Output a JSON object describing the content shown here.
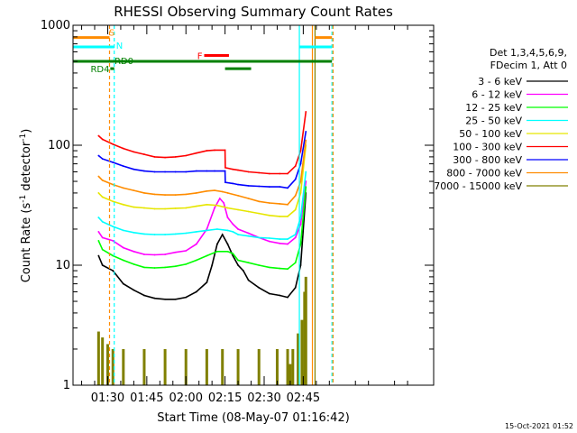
{
  "chart_data": {
    "type": "line",
    "title": "RHESSI Observing Summary Count Rates",
    "xlabel": "Start Time (08-May-07 01:16:42)",
    "ylabel_main": "Count Rate (s",
    "ylabel_sup1": "-1",
    "ylabel_mid": " detector",
    "ylabel_sup2": "-1",
    "ylabel_end": ")",
    "yscale": "log",
    "ylim": [
      1,
      1000
    ],
    "xlim_min": [
      76.7,
      215
    ],
    "y_ticks": [
      {
        "value": 1,
        "label": "1"
      },
      {
        "value": 10,
        "label": "10"
      },
      {
        "value": 100,
        "label": "100"
      },
      {
        "value": 1000,
        "label": "1000"
      }
    ],
    "x_ticks": [
      {
        "value": 90,
        "label": "01:30"
      },
      {
        "value": 105,
        "label": "01:45"
      },
      {
        "value": 120,
        "label": "02:00"
      },
      {
        "value": 135,
        "label": "02:15"
      },
      {
        "value": 150,
        "label": "02:30"
      },
      {
        "value": 165,
        "label": "02:45"
      }
    ],
    "legend": {
      "header_line1": "Det 1,3,4,5,6,9,",
      "header_line2": "FDecim 1, Att 0",
      "placement": "right"
    },
    "series": [
      {
        "name": "3 - 6 keV",
        "color": "#000000",
        "points": [
          [
            86.5,
            12
          ],
          [
            88,
            10
          ],
          [
            92,
            9
          ],
          [
            96,
            7
          ],
          [
            100,
            6.2
          ],
          [
            104,
            5.6
          ],
          [
            108,
            5.3
          ],
          [
            112,
            5.2
          ],
          [
            116,
            5.2
          ],
          [
            120,
            5.4
          ],
          [
            124,
            6
          ],
          [
            128,
            7.2
          ],
          [
            130,
            10
          ],
          [
            132,
            15
          ],
          [
            134,
            18
          ],
          [
            136,
            15
          ],
          [
            138,
            12
          ],
          [
            140,
            10
          ],
          [
            142,
            9
          ],
          [
            144,
            7.5
          ],
          [
            148,
            6.5
          ],
          [
            152,
            5.8
          ],
          [
            156,
            5.6
          ],
          [
            159,
            5.4
          ],
          [
            162,
            6.5
          ],
          [
            164,
            10
          ],
          [
            166,
            40
          ]
        ]
      },
      {
        "name": "6 - 12 keV",
        "color": "#ff00ff",
        "points": [
          [
            86.5,
            19
          ],
          [
            88,
            17
          ],
          [
            92,
            16
          ],
          [
            96,
            14
          ],
          [
            100,
            13
          ],
          [
            104,
            12.3
          ],
          [
            108,
            12.2
          ],
          [
            112,
            12.3
          ],
          [
            116,
            12.8
          ],
          [
            120,
            13.2
          ],
          [
            124,
            15
          ],
          [
            128,
            20
          ],
          [
            131,
            30
          ],
          [
            133,
            36
          ],
          [
            134.5,
            33
          ],
          [
            136,
            25
          ],
          [
            138,
            22
          ],
          [
            140,
            20
          ],
          [
            144,
            18.5
          ],
          [
            148,
            17
          ],
          [
            152,
            15.8
          ],
          [
            156,
            15.2
          ],
          [
            159,
            15
          ],
          [
            162,
            17
          ],
          [
            164,
            22
          ],
          [
            166,
            50
          ]
        ]
      },
      {
        "name": "12 - 25 keV",
        "color": "#00ff00",
        "points": [
          [
            86.5,
            16
          ],
          [
            88,
            13.5
          ],
          [
            92,
            12
          ],
          [
            96,
            11
          ],
          [
            100,
            10.2
          ],
          [
            104,
            9.6
          ],
          [
            108,
            9.5
          ],
          [
            112,
            9.6
          ],
          [
            116,
            9.8
          ],
          [
            120,
            10.2
          ],
          [
            124,
            11
          ],
          [
            128,
            12
          ],
          [
            132,
            13
          ],
          [
            136,
            13
          ],
          [
            138,
            12.5
          ],
          [
            140,
            11
          ],
          [
            144,
            10.5
          ],
          [
            148,
            10
          ],
          [
            152,
            9.6
          ],
          [
            156,
            9.4
          ],
          [
            159,
            9.3
          ],
          [
            162,
            10.5
          ],
          [
            164,
            15
          ],
          [
            166,
            45
          ]
        ]
      },
      {
        "name": "25 - 50 keV",
        "color": "#00ffff",
        "points": [
          [
            86.5,
            25
          ],
          [
            88,
            23
          ],
          [
            92,
            21
          ],
          [
            96,
            19.5
          ],
          [
            100,
            18.7
          ],
          [
            104,
            18.2
          ],
          [
            108,
            18
          ],
          [
            112,
            18
          ],
          [
            116,
            18.2
          ],
          [
            120,
            18.5
          ],
          [
            124,
            19
          ],
          [
            128,
            19.5
          ],
          [
            132,
            20
          ],
          [
            136,
            19.5
          ],
          [
            138,
            19
          ],
          [
            140,
            18
          ],
          [
            144,
            17.5
          ],
          [
            148,
            17
          ],
          [
            152,
            16.8
          ],
          [
            156,
            16.5
          ],
          [
            159,
            16.5
          ],
          [
            162,
            18
          ],
          [
            164,
            25
          ],
          [
            166,
            60
          ]
        ]
      },
      {
        "name": "50 - 100 keV",
        "color": "#e6e600",
        "points": [
          [
            86.5,
            40
          ],
          [
            88,
            37
          ],
          [
            92,
            34
          ],
          [
            96,
            32
          ],
          [
            100,
            30.5
          ],
          [
            104,
            30
          ],
          [
            108,
            29.5
          ],
          [
            112,
            29.5
          ],
          [
            116,
            29.8
          ],
          [
            120,
            30
          ],
          [
            124,
            31
          ],
          [
            128,
            32
          ],
          [
            132,
            31.5
          ],
          [
            136,
            30
          ],
          [
            140,
            29
          ],
          [
            144,
            28
          ],
          [
            148,
            27
          ],
          [
            152,
            26
          ],
          [
            156,
            25.5
          ],
          [
            159,
            25.5
          ],
          [
            162,
            29
          ],
          [
            164,
            40
          ],
          [
            166,
            100
          ]
        ]
      },
      {
        "name": "100 - 300 keV",
        "color": "#ff0000",
        "points": [
          [
            86.5,
            120
          ],
          [
            88,
            112
          ],
          [
            92,
            102
          ],
          [
            96,
            94
          ],
          [
            100,
            88
          ],
          [
            104,
            84
          ],
          [
            108,
            80
          ],
          [
            112,
            79
          ],
          [
            116,
            80
          ],
          [
            120,
            82
          ],
          [
            124,
            86
          ],
          [
            128,
            90
          ],
          [
            131,
            91
          ],
          [
            135,
            91
          ],
          [
            135.1,
            65
          ],
          [
            138,
            63
          ],
          [
            140,
            62
          ],
          [
            144,
            60
          ],
          [
            148,
            59
          ],
          [
            152,
            58
          ],
          [
            156,
            58
          ],
          [
            159,
            58
          ],
          [
            162,
            67
          ],
          [
            164,
            90
          ],
          [
            166,
            190
          ]
        ]
      },
      {
        "name": "300 - 800 keV",
        "color": "#0000ff",
        "points": [
          [
            86.5,
            82
          ],
          [
            88,
            77
          ],
          [
            92,
            72
          ],
          [
            96,
            67
          ],
          [
            100,
            63
          ],
          [
            104,
            61
          ],
          [
            108,
            60
          ],
          [
            112,
            60
          ],
          [
            116,
            60
          ],
          [
            120,
            60
          ],
          [
            124,
            61
          ],
          [
            128,
            61
          ],
          [
            131,
            61
          ],
          [
            135,
            61
          ],
          [
            135.1,
            49
          ],
          [
            138,
            48
          ],
          [
            140,
            47
          ],
          [
            144,
            46
          ],
          [
            148,
            45.5
          ],
          [
            152,
            45
          ],
          [
            156,
            45
          ],
          [
            159,
            44
          ],
          [
            162,
            52
          ],
          [
            164,
            70
          ],
          [
            166,
            130
          ]
        ]
      },
      {
        "name": "800 - 7000 keV",
        "color": "#ff8c00",
        "points": [
          [
            86.5,
            55
          ],
          [
            88,
            51
          ],
          [
            92,
            47
          ],
          [
            96,
            44
          ],
          [
            100,
            42
          ],
          [
            104,
            40
          ],
          [
            108,
            39
          ],
          [
            112,
            38.5
          ],
          [
            116,
            38.5
          ],
          [
            120,
            39
          ],
          [
            124,
            40
          ],
          [
            128,
            41.5
          ],
          [
            131,
            42
          ],
          [
            134,
            41
          ],
          [
            136,
            40
          ],
          [
            140,
            38
          ],
          [
            144,
            36
          ],
          [
            148,
            34
          ],
          [
            152,
            33
          ],
          [
            156,
            32.5
          ],
          [
            159,
            32
          ],
          [
            162,
            38
          ],
          [
            164,
            50
          ],
          [
            166,
            110
          ]
        ]
      },
      {
        "name": "7000 - 15000 keV",
        "color": "#808000",
        "points": [
          [
            86.5,
            2.8
          ],
          [
            88,
            2.5
          ],
          [
            90,
            2.2
          ],
          [
            92,
            2
          ],
          [
            96,
            2
          ],
          [
            104,
            2
          ],
          [
            112,
            2
          ],
          [
            120,
            2
          ],
          [
            128,
            2
          ],
          [
            134,
            2
          ],
          [
            140,
            2
          ],
          [
            148,
            2
          ],
          [
            155,
            2
          ],
          [
            159,
            2
          ],
          [
            160,
            1.5
          ],
          [
            161,
            2
          ],
          [
            163,
            2.7
          ],
          [
            164.5,
            3.5
          ],
          [
            165.5,
            6
          ],
          [
            166,
            8
          ]
        ]
      }
    ],
    "annotations": {
      "S": {
        "label": "S",
        "color": "#ff8c00",
        "level": 790,
        "segments": [
          [
            76.7,
            90.7
          ],
          [
            169.5,
            176
          ]
        ]
      },
      "N": {
        "label": "N",
        "color": "#00ffff",
        "level": 660,
        "segments": [
          [
            76.7,
            92.5
          ],
          [
            163.5,
            176
          ]
        ]
      },
      "RD0": {
        "label": "RD0",
        "color": "#008000",
        "level": 500,
        "segments": [
          [
            76.7,
            176
          ]
        ]
      },
      "F": {
        "label": "F",
        "color": "#ff0000",
        "level": 560,
        "segments": [
          [
            127,
            136.5
          ]
        ]
      },
      "RD4": {
        "label": "RD4",
        "color": "#008000",
        "level": 435,
        "segments": [
          [
            91,
            92.5
          ],
          [
            135,
            145
          ]
        ]
      },
      "vlines": [
        {
          "value": 90.7,
          "color": "#ff8c00",
          "style": "dashed"
        },
        {
          "value": 92.5,
          "color": "#00ffff",
          "style": "dashed"
        },
        {
          "value": 163.5,
          "color": "#00ffff",
          "style": "solid"
        },
        {
          "value": 168.5,
          "color": "#ff8c00",
          "style": "solid"
        },
        {
          "value": 169.5,
          "color": "#808000",
          "style": "solid"
        },
        {
          "value": 176,
          "color": "#00ffff",
          "style": "dashed"
        },
        {
          "value": 176.4,
          "color": "#ff8c00",
          "style": "dashed"
        }
      ]
    }
  },
  "footer_timestamp": "15-Oct-2021 01:52"
}
